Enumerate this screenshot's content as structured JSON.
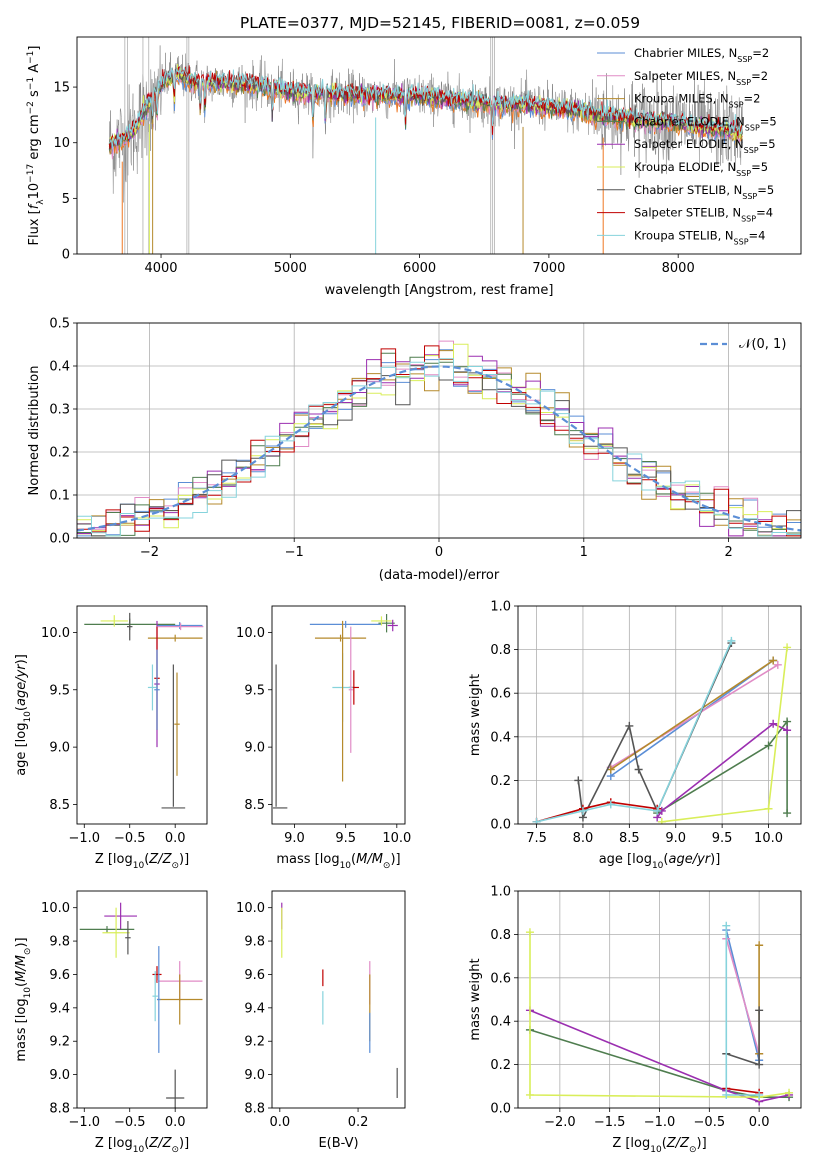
{
  "figure_title": "PLATE=0377, MJD=52145, FIBERID=0081, z=0.059",
  "colors": {
    "Chabrier MILES": "#5b8ed6",
    "Salpeter MILES": "#e08cc6",
    "Kroupa MILES": "#b58a2c",
    "Chabrier ELODIE": "#4f7d4f",
    "Salpeter ELODIE": "#9b2fb0",
    "Kroupa ELODIE": "#d9ee5a",
    "Chabrier STELIB": "#555555",
    "Salpeter STELIB": "#c00000",
    "Kroupa STELIB": "#86d3dc",
    "data": "#808080",
    "orange": "#ee7722"
  },
  "chart_data": [
    {
      "id": "spectrum",
      "type": "line",
      "title": "PLATE=0377, MJD=52145, FIBERID=0081, z=0.059",
      "xlabel": "wavelength [Angstrom, rest frame]",
      "ylabel": "Flux [f_λ 10^-17 erg cm^-2 s^-1 A^-1]",
      "xlim": [
        3350,
        8950
      ],
      "ylim": [
        0,
        19.5
      ],
      "xticks": [
        4000,
        5000,
        6000,
        7000,
        8000
      ],
      "yticks": [
        0,
        5,
        10,
        15
      ],
      "legend_position": "top-right",
      "legend": [
        {
          "main": "Chabrier MILES, N",
          "sub": "SSP",
          "tail": "=2"
        },
        {
          "main": "Salpeter MILES, N",
          "sub": "SSP",
          "tail": "=2"
        },
        {
          "main": "Kroupa MILES, N",
          "sub": "SSP",
          "tail": "=2"
        },
        {
          "main": "Chabrier ELODIE, N",
          "sub": "SSP",
          "tail": "=5"
        },
        {
          "main": "Salpeter ELODIE, N",
          "sub": "SSP",
          "tail": "=5"
        },
        {
          "main": "Kroupa ELODIE, N",
          "sub": "SSP",
          "tail": "=5"
        },
        {
          "main": "Chabrier STELIB, N",
          "sub": "SSP",
          "tail": "=5"
        },
        {
          "main": "Salpeter STELIB, N",
          "sub": "SSP",
          "tail": "=4"
        },
        {
          "main": "Kroupa STELIB, N",
          "sub": "SSP",
          "tail": "=4"
        }
      ],
      "continuum_knots": {
        "x": [
          3600,
          3700,
          3800,
          3900,
          4000,
          4100,
          4200,
          4300,
          4500,
          4800,
          5000,
          5500,
          6000,
          6500,
          7000,
          7500,
          8000,
          8500
        ],
        "y": [
          9.8,
          10.3,
          11.2,
          13.5,
          15.2,
          16.3,
          15.8,
          15.4,
          15.4,
          15.1,
          14.6,
          14.3,
          14.2,
          13.6,
          13.3,
          12.3,
          11.8,
          10.9
        ]
      }
    },
    {
      "id": "residual_hist",
      "type": "line",
      "xlabel": "(data-model)/error",
      "ylabel": "Normed distribution",
      "xlim": [
        -2.5,
        2.5
      ],
      "ylim": [
        0,
        0.5
      ],
      "xticks": [
        -2,
        -1,
        0,
        1,
        2
      ],
      "yticks": [
        0.0,
        0.1,
        0.2,
        0.3,
        0.4,
        0.5
      ],
      "grid": true,
      "legend_position": "top-right",
      "legend": [
        "𝒩(0, 1)"
      ],
      "bin_width": 0.1,
      "bin_start": -2.5,
      "gaussian": {
        "mean": 0,
        "sigma": 1
      }
    },
    {
      "id": "age_vs_Z",
      "type": "scatter",
      "xlabel": "Z [log10(Z/Z☉)]",
      "ylabel": "age  [log10(age/yr)]",
      "xlim": [
        -1.08,
        0.35
      ],
      "ylim": [
        8.33,
        10.23
      ],
      "xticks": [
        -1.0,
        -0.5,
        0.0
      ],
      "yticks": [
        8.5,
        9.0,
        9.5,
        10.0
      ],
      "points": [
        {
          "model": "Chabrier MILES",
          "x": 0.05,
          "y": 10.06,
          "xerr": 0.25,
          "yerr": 0.03
        },
        {
          "model": "Salpeter MILES",
          "x": 0.06,
          "y": 10.05,
          "xerr": 0.25,
          "yerr": 0.03
        },
        {
          "model": "Kroupa MILES",
          "x": 0.0,
          "y": 9.95,
          "xerr": 0.3,
          "yerr": 0.03
        },
        {
          "model": "Chabrier ELODIE",
          "x": -0.5,
          "y": 10.07,
          "xerr": 0.5,
          "yerr": 0.05
        },
        {
          "model": "Salpeter ELODIE",
          "x": -0.2,
          "y": 9.55,
          "xerr": 0.03,
          "yerr": 0.55
        },
        {
          "model": "Kroupa ELODIE",
          "x": -0.67,
          "y": 10.1,
          "xerr": 0.15,
          "yerr": 0.05
        },
        {
          "model": "Chabrier STELIB",
          "x": -0.5,
          "y": 10.05,
          "xerr": 0.03,
          "yerr": 0.12
        },
        {
          "model": "Salpeter STELIB",
          "x": -0.2,
          "y": 9.6,
          "xerr": 0.03,
          "yerr": 0.45
        },
        {
          "model": "Kroupa STELIB",
          "x": -0.25,
          "y": 9.52,
          "xerr": 0.05,
          "yerr": 0.2
        },
        {
          "model": "Chabrier MILES",
          "x": -0.2,
          "y": 9.5,
          "xerr": 0.03,
          "yerr": 0.35
        },
        {
          "model": "Kroupa MILES",
          "x": 0.02,
          "y": 9.2,
          "xerr": 0.03,
          "yerr": 0.45
        },
        {
          "model": "Chabrier STELIB",
          "x": -0.02,
          "y": 8.47,
          "xerr": 0.13,
          "yerr": 0.0
        },
        {
          "model": "Chabrier STELIB",
          "x": -0.02,
          "y": 9.1,
          "xerr": 0.0,
          "yerr": 0.62
        }
      ]
    },
    {
      "id": "age_vs_mass",
      "type": "scatter",
      "xlabel": "mass [log10(M/M☉)]",
      "ylabel": "",
      "xlim": [
        8.78,
        10.08
      ],
      "ylim": [
        8.33,
        10.23
      ],
      "xticks": [
        9.0,
        9.5,
        10.0
      ],
      "yticks": [
        8.5,
        9.0,
        9.5,
        10.0
      ],
      "points": [
        {
          "model": "Chabrier MILES",
          "x": 9.5,
          "y": 10.07,
          "xerr": 0.35,
          "yerr": 0.03
        },
        {
          "model": "Kroupa MILES",
          "x": 9.45,
          "y": 9.95,
          "xerr": 0.25,
          "yerr": 0.03
        },
        {
          "model": "Chabrier ELODIE",
          "x": 9.9,
          "y": 10.08,
          "xerr": 0.08,
          "yerr": 0.08
        },
        {
          "model": "Salpeter ELODIE",
          "x": 9.96,
          "y": 10.06,
          "xerr": 0.05,
          "yerr": 0.05
        },
        {
          "model": "Kroupa ELODIE",
          "x": 9.85,
          "y": 10.1,
          "xerr": 0.1,
          "yerr": 0.04
        },
        {
          "model": "Salpeter STELIB",
          "x": 9.58,
          "y": 9.52,
          "xerr": 0.05,
          "yerr": 0.15
        },
        {
          "model": "Kroupa STELIB",
          "x": 9.47,
          "y": 9.52,
          "xerr": 0.1,
          "yerr": 0.3
        },
        {
          "model": "Salpeter MILES",
          "x": 9.55,
          "y": 9.5,
          "xerr": 0.02,
          "yerr": 0.55
        },
        {
          "model": "Chabrier STELIB",
          "x": 8.86,
          "y": 8.47,
          "xerr": 0.07,
          "yerr": 0.0
        },
        {
          "model": "Chabrier STELIB",
          "x": 8.82,
          "y": 9.1,
          "xerr": 0.0,
          "yerr": 0.62
        },
        {
          "model": "Kroupa MILES",
          "x": 9.47,
          "y": 9.4,
          "xerr": 0.0,
          "yerr": 0.7
        }
      ]
    },
    {
      "id": "weight_vs_age",
      "type": "line",
      "xlabel": "age  [log10(age/yr)]",
      "ylabel": "mass weight",
      "xlim": [
        7.3,
        10.35
      ],
      "ylim": [
        0.0,
        1.0
      ],
      "xticks": [
        7.5,
        8.0,
        8.5,
        9.0,
        9.5,
        10.0
      ],
      "yticks": [
        0.0,
        0.2,
        0.4,
        0.6,
        0.8,
        1.0
      ],
      "grid": true,
      "series": [
        {
          "model": "Chabrier MILES",
          "x": [
            8.3,
            10.05
          ],
          "y": [
            0.22,
            0.75
          ]
        },
        {
          "model": "Salpeter MILES",
          "x": [
            8.3,
            10.1
          ],
          "y": [
            0.26,
            0.73
          ]
        },
        {
          "model": "Kroupa MILES",
          "x": [
            8.3,
            10.05
          ],
          "y": [
            0.25,
            0.75
          ]
        },
        {
          "model": "Chabrier ELODIE",
          "x": [
            8.8,
            10.0,
            10.2,
            10.2
          ],
          "y": [
            0.05,
            0.36,
            0.47,
            0.05
          ]
        },
        {
          "model": "Salpeter ELODIE",
          "x": [
            8.8,
            8.85,
            10.05,
            10.2
          ],
          "y": [
            0.03,
            0.06,
            0.46,
            0.43
          ]
        },
        {
          "model": "Kroupa ELODIE",
          "x": [
            8.85,
            10.0,
            10.2
          ],
          "y": [
            0.01,
            0.07,
            0.81
          ]
        },
        {
          "model": "Chabrier STELIB",
          "x": [
            7.95,
            8.0,
            8.5,
            8.6,
            8.8,
            9.6
          ],
          "y": [
            0.2,
            0.03,
            0.45,
            0.25,
            0.06,
            0.83
          ]
        },
        {
          "model": "Salpeter STELIB",
          "x": [
            7.5,
            8.0,
            8.3,
            8.8
          ],
          "y": [
            0.01,
            0.07,
            0.1,
            0.07
          ]
        },
        {
          "model": "Kroupa STELIB",
          "x": [
            7.5,
            8.0,
            8.3,
            8.8,
            9.6
          ],
          "y": [
            0.01,
            0.06,
            0.09,
            0.06,
            0.84
          ]
        }
      ]
    },
    {
      "id": "mass_vs_Z",
      "type": "scatter",
      "xlabel": "Z [log10(Z/Z☉)]",
      "ylabel": "mass [log10(M/M☉)]",
      "xlim": [
        -1.08,
        0.35
      ],
      "ylim": [
        8.8,
        10.1
      ],
      "xticks": [
        -1.0,
        -0.5,
        0.0
      ],
      "yticks": [
        8.8,
        9.0,
        9.2,
        9.4,
        9.6,
        9.8,
        10.0
      ],
      "points": [
        {
          "model": "Salpeter ELODIE",
          "x": -0.6,
          "y": 9.95,
          "xerr": 0.18,
          "yerr": 0.08
        },
        {
          "model": "Chabrier ELODIE",
          "x": -0.75,
          "y": 9.87,
          "xerr": 0.3,
          "yerr": 0.02
        },
        {
          "model": "Kroupa ELODIE",
          "x": -0.65,
          "y": 9.85,
          "xerr": 0.15,
          "yerr": 0.15
        },
        {
          "model": "Chabrier STELIB",
          "x": -0.52,
          "y": 9.82,
          "xerr": 0.03,
          "yerr": 0.1
        },
        {
          "model": "Salpeter STELIB",
          "x": -0.2,
          "y": 9.6,
          "xerr": 0.05,
          "yerr": 0.05
        },
        {
          "model": "Salpeter MILES",
          "x": 0.05,
          "y": 9.56,
          "xerr": 0.25,
          "yerr": 0.12
        },
        {
          "model": "Kroupa STELIB",
          "x": -0.22,
          "y": 9.47,
          "xerr": 0.03,
          "yerr": 0.15
        },
        {
          "model": "Kroupa MILES",
          "x": 0.05,
          "y": 9.45,
          "xerr": 0.25,
          "yerr": 0.15
        },
        {
          "model": "Chabrier MILES",
          "x": -0.18,
          "y": 9.45,
          "xerr": 0.02,
          "yerr": 0.32
        },
        {
          "model": "Chabrier STELIB",
          "x": -0.0,
          "y": 8.86,
          "xerr": 0.1,
          "yerr": 0.17
        }
      ]
    },
    {
      "id": "mass_vs_EBV",
      "type": "scatter",
      "xlabel": "E(B-V)",
      "ylabel": "",
      "xlim": [
        -0.02,
        0.32
      ],
      "ylim": [
        8.8,
        10.1
      ],
      "xticks": [
        0.0,
        0.2
      ],
      "yticks": [
        8.8,
        9.0,
        9.2,
        9.4,
        9.6,
        9.8,
        10.0
      ],
      "points": [
        {
          "model": "Salpeter ELODIE",
          "x": 0.005,
          "y": 9.95,
          "xerr": 0.0,
          "yerr": 0.08
        },
        {
          "model": "Kroupa ELODIE",
          "x": 0.005,
          "y": 9.85,
          "xerr": 0.0,
          "yerr": 0.15
        },
        {
          "model": "Salpeter STELIB",
          "x": 0.11,
          "y": 9.58,
          "xerr": 0.0,
          "yerr": 0.05
        },
        {
          "model": "Kroupa STELIB",
          "x": 0.11,
          "y": 9.4,
          "xerr": 0.0,
          "yerr": 0.1
        },
        {
          "model": "Salpeter MILES",
          "x": 0.23,
          "y": 9.55,
          "xerr": 0.0,
          "yerr": 0.13
        },
        {
          "model": "Kroupa MILES",
          "x": 0.23,
          "y": 9.4,
          "xerr": 0.0,
          "yerr": 0.2
        },
        {
          "model": "Chabrier MILES",
          "x": 0.23,
          "y": 9.25,
          "xerr": 0.0,
          "yerr": 0.12
        },
        {
          "model": "Chabrier STELIB",
          "x": 0.3,
          "y": 8.95,
          "xerr": 0.0,
          "yerr": 0.09
        }
      ]
    },
    {
      "id": "weight_vs_Z",
      "type": "line",
      "xlabel": "Z [log10(Z/Z☉)]",
      "ylabel": "mass weight",
      "xlim": [
        -2.42,
        0.42
      ],
      "ylim": [
        0.0,
        1.0
      ],
      "xticks": [
        -2.0,
        -1.5,
        -1.0,
        -0.5,
        0.0
      ],
      "yticks": [
        0.0,
        0.2,
        0.4,
        0.6,
        0.8,
        1.0
      ],
      "grid": true,
      "series": [
        {
          "model": "Chabrier MILES",
          "x": [
            -0.33,
            0.0
          ],
          "y": [
            0.82,
            0.22
          ]
        },
        {
          "model": "Salpeter MILES",
          "x": [
            -0.33,
            0.0
          ],
          "y": [
            0.78,
            0.25
          ]
        },
        {
          "model": "Kroupa MILES",
          "x": [
            0.0,
            0.0
          ],
          "y": [
            0.25,
            0.75
          ]
        },
        {
          "model": "Chabrier ELODIE",
          "x": [
            -2.3,
            -0.33,
            0.0,
            0.3
          ],
          "y": [
            0.36,
            0.08,
            0.05,
            0.05
          ]
        },
        {
          "model": "Salpeter ELODIE",
          "x": [
            -2.3,
            -0.33,
            0.0,
            0.3
          ],
          "y": [
            0.45,
            0.08,
            0.03,
            0.06
          ]
        },
        {
          "model": "Kroupa ELODIE",
          "x": [
            -2.3,
            -2.3,
            0.0,
            0.3
          ],
          "y": [
            0.81,
            0.06,
            0.05,
            0.07
          ]
        },
        {
          "model": "Chabrier STELIB",
          "x": [
            -0.33,
            0.0,
            0.0
          ],
          "y": [
            0.25,
            0.2,
            0.45
          ]
        },
        {
          "model": "Salpeter STELIB",
          "x": [
            -0.33,
            0.0
          ],
          "y": [
            0.09,
            0.07
          ]
        },
        {
          "model": "Kroupa STELIB",
          "x": [
            -0.33,
            -0.33,
            0.0
          ],
          "y": [
            0.84,
            0.06,
            0.06
          ]
        }
      ]
    }
  ]
}
